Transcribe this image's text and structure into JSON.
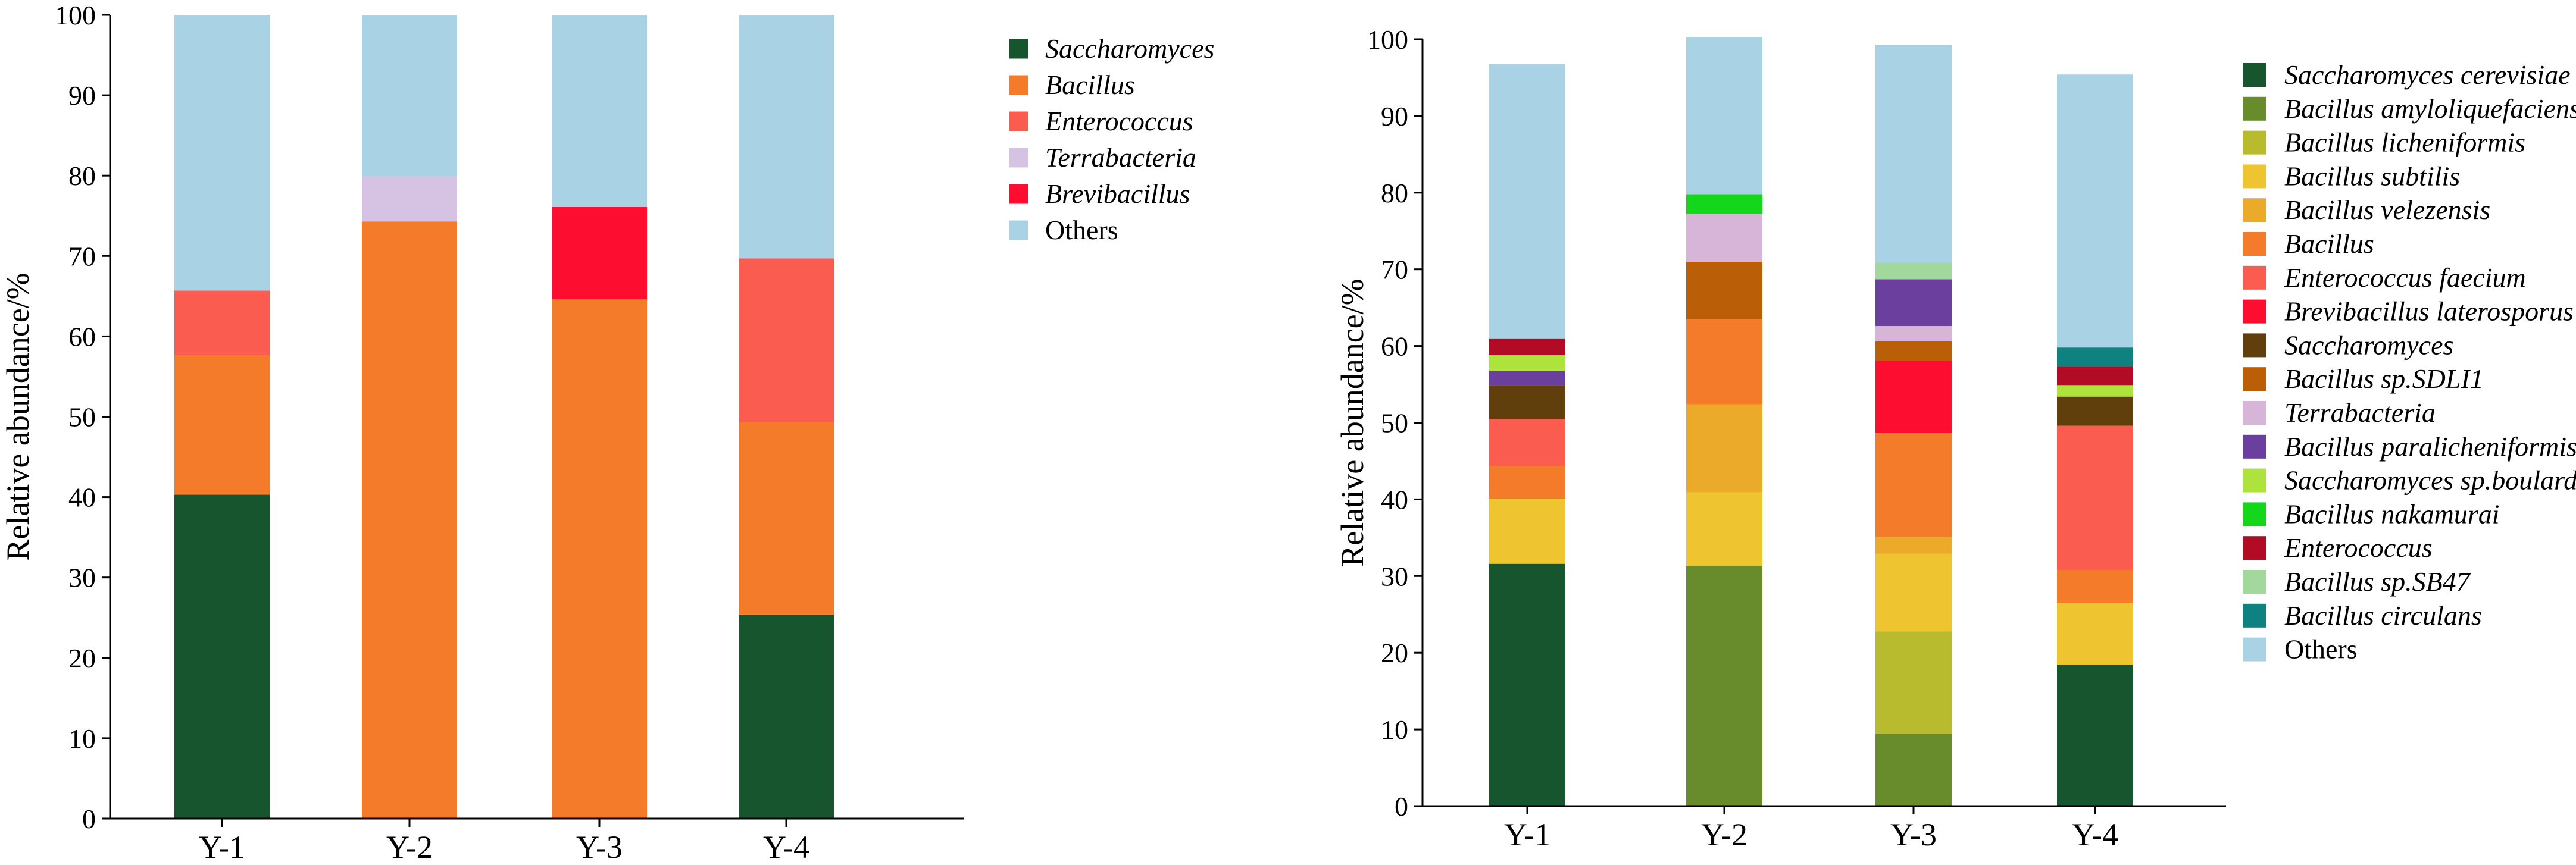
{
  "chart_data": [
    {
      "type": "stacked-bar",
      "title": "",
      "xlabel": "",
      "ylabel": "Relative abundance/%",
      "ylim": [
        0,
        100
      ],
      "yticks": [
        0,
        10,
        20,
        30,
        40,
        50,
        60,
        70,
        80,
        90,
        100
      ],
      "grid": false,
      "legend_position": "right",
      "categories": [
        "Y-1",
        "Y-2",
        "Y-3",
        "Y-4"
      ],
      "series": [
        {
          "name": "Saccharomyces",
          "italic": true,
          "color": "#17552f",
          "values": [
            40.3,
            0,
            0,
            25.4
          ]
        },
        {
          "name": "Bacillus",
          "italic": true,
          "color": "#f47b2a",
          "values": [
            17.3,
            74.3,
            64.6,
            23.9
          ]
        },
        {
          "name": "Enterococcus",
          "italic": true,
          "color": "#fa5c50",
          "values": [
            8.1,
            0,
            0,
            20.4
          ]
        },
        {
          "name": "Terrabacteria",
          "italic": true,
          "color": "#d6c2e3",
          "values": [
            0,
            5.6,
            0,
            0
          ]
        },
        {
          "name": "Brevibacillus",
          "italic": true,
          "color": "#fd0e30",
          "values": [
            0,
            0,
            11.5,
            0
          ]
        },
        {
          "name": "Others",
          "italic": false,
          "color": "#a9d3e5",
          "values": [
            34.3,
            20.1,
            23.9,
            30.3
          ]
        }
      ]
    },
    {
      "type": "stacked-bar",
      "title": "",
      "xlabel": "",
      "ylabel": "Relative abundance/%",
      "ylim": [
        0,
        100
      ],
      "yticks": [
        0,
        10,
        20,
        30,
        40,
        50,
        60,
        70,
        80,
        90,
        100
      ],
      "grid": false,
      "legend_position": "right",
      "categories": [
        "Y-1",
        "Y-2",
        "Y-3",
        "Y-4"
      ],
      "series": [
        {
          "name": "Saccharomyces cerevisiae",
          "italic": true,
          "color": "#17552f",
          "values": [
            31.6,
            0,
            0,
            18.4
          ]
        },
        {
          "name": "Bacillus amyloliquefaciens",
          "italic": true,
          "color": "#688b2b",
          "values": [
            0,
            31.3,
            9.4,
            0
          ]
        },
        {
          "name": "Bacillus licheniformis",
          "italic": true,
          "color": "#b9bb2f",
          "values": [
            0,
            0,
            13.4,
            0
          ]
        },
        {
          "name": "Bacillus subtilis",
          "italic": true,
          "color": "#eec530",
          "values": [
            8.5,
            9.6,
            10.1,
            8.1
          ]
        },
        {
          "name": "Bacillus velezensis",
          "italic": true,
          "color": "#ecaa2b",
          "values": [
            0,
            11.5,
            2.2,
            0
          ]
        },
        {
          "name": "Bacillus",
          "italic": true,
          "color": "#f47b2a",
          "values": [
            4.2,
            11.1,
            13.6,
            4.3
          ]
        },
        {
          "name": "Enterococcus faecium",
          "italic": true,
          "color": "#fa5c50",
          "values": [
            6.2,
            0,
            0,
            18.8
          ]
        },
        {
          "name": "Brevibacillus laterosporus",
          "italic": true,
          "color": "#fd0e30",
          "values": [
            0,
            0,
            9.4,
            0
          ]
        },
        {
          "name": "Saccharomyces",
          "italic": true,
          "color": "#603f0d",
          "values": [
            4.4,
            0,
            0,
            3.8
          ]
        },
        {
          "name": "Bacillus sp.SDLI1",
          "italic": true,
          "color": "#bb5e08",
          "values": [
            0,
            7.5,
            2.5,
            0
          ]
        },
        {
          "name": "Terrabacteria",
          "italic": true,
          "color": "#d6b5d9",
          "values": [
            0,
            6.2,
            2.0,
            0
          ]
        },
        {
          "name": "Bacillus paralicheniformis",
          "italic": true,
          "color": "#6a3f9d",
          "values": [
            1.9,
            0,
            6.1,
            0
          ]
        },
        {
          "name": "Saccharomyces sp.boulardii",
          "italic": true,
          "color": "#aee33e",
          "values": [
            2.0,
            0,
            0,
            1.5
          ]
        },
        {
          "name": "Bacillus nakamurai",
          "italic": true,
          "color": "#14d71c",
          "values": [
            0,
            2.6,
            0,
            0
          ]
        },
        {
          "name": "Enterococcus",
          "italic": true,
          "color": "#b10b26",
          "values": [
            2.2,
            0,
            0,
            2.4
          ]
        },
        {
          "name": "Bacillus sp.SB47",
          "italic": true,
          "color": "#a2d89c",
          "values": [
            0,
            0,
            2.2,
            0
          ]
        },
        {
          "name": "Bacillus circulans",
          "italic": true,
          "color": "#0e8280",
          "values": [
            0,
            0,
            0,
            2.5
          ]
        },
        {
          "name": "Others",
          "italic": false,
          "color": "#a9d3e5",
          "values": [
            35.8,
            20.5,
            28.4,
            35.6
          ]
        }
      ]
    }
  ]
}
